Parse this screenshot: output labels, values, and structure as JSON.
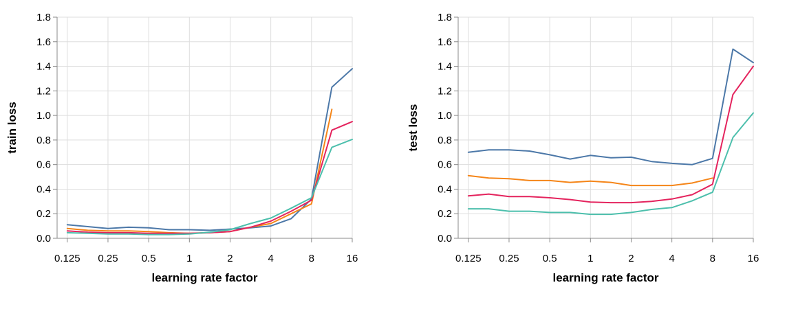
{
  "colors": {
    "grid": "#dddddd",
    "axis": "#888888",
    "background": "#ffffff"
  },
  "chart_data": [
    {
      "type": "line",
      "xlabel": "learning rate factor",
      "ylabel": "train loss",
      "x_scale": "log2",
      "ylim": [
        0,
        1.8
      ],
      "grid": true,
      "x_ticks": [
        0.125,
        0.25,
        0.5,
        1,
        2,
        4,
        8,
        16
      ],
      "x_tick_labels": [
        "0.125",
        "0.25",
        "0.5",
        "1",
        "2",
        "4",
        "8",
        "16"
      ],
      "y_ticks": [
        0,
        0.2,
        0.4,
        0.6,
        0.8,
        1.0,
        1.2,
        1.4,
        1.6,
        1.8
      ],
      "y_tick_labels": [
        "0.0",
        "0.2",
        "0.4",
        "0.6",
        "0.8",
        "1.0",
        "1.2",
        "1.4",
        "1.6",
        "1.8"
      ],
      "x": [
        0.125,
        0.177,
        0.25,
        0.354,
        0.5,
        0.707,
        1,
        1.414,
        2,
        2.828,
        4,
        5.657,
        8,
        11.31,
        16
      ],
      "series": [
        {
          "color": "#4c78a8",
          "values": [
            0.11,
            0.095,
            0.08,
            0.09,
            0.085,
            0.07,
            0.07,
            0.065,
            0.075,
            0.085,
            0.1,
            0.16,
            0.32,
            1.23,
            1.38
          ]
        },
        {
          "color": "#f58518",
          "values": [
            0.08,
            0.065,
            0.06,
            0.06,
            0.055,
            0.045,
            0.04,
            0.045,
            0.055,
            0.09,
            0.12,
            0.2,
            0.28,
            1.05,
            null
          ]
        },
        {
          "color": "#e4235d",
          "values": [
            0.06,
            0.05,
            0.045,
            0.045,
            0.04,
            0.04,
            0.04,
            0.045,
            0.055,
            0.09,
            0.14,
            0.22,
            0.31,
            0.88,
            0.95
          ]
        },
        {
          "color": "#4cbfac",
          "values": [
            0.045,
            0.04,
            0.035,
            0.035,
            0.03,
            0.03,
            0.035,
            0.05,
            0.07,
            0.12,
            0.165,
            0.245,
            0.33,
            0.74,
            0.805
          ]
        }
      ]
    },
    {
      "type": "line",
      "xlabel": "learning rate factor",
      "ylabel": "test loss",
      "x_scale": "log2",
      "ylim": [
        0,
        1.8
      ],
      "grid": true,
      "x_ticks": [
        0.125,
        0.25,
        0.5,
        1,
        2,
        4,
        8,
        16
      ],
      "x_tick_labels": [
        "0.125",
        "0.25",
        "0.5",
        "1",
        "2",
        "4",
        "8",
        "16"
      ],
      "y_ticks": [
        0,
        0.2,
        0.4,
        0.6,
        0.8,
        1.0,
        1.2,
        1.4,
        1.6,
        1.8
      ],
      "y_tick_labels": [
        "0.0",
        "0.2",
        "0.4",
        "0.6",
        "0.8",
        "1.0",
        "1.2",
        "1.4",
        "1.6",
        "1.8"
      ],
      "x": [
        0.125,
        0.177,
        0.25,
        0.354,
        0.5,
        0.707,
        1,
        1.414,
        2,
        2.828,
        4,
        5.657,
        8,
        11.31,
        16
      ],
      "series": [
        {
          "color": "#4c78a8",
          "values": [
            0.7,
            0.72,
            0.72,
            0.71,
            0.68,
            0.645,
            0.675,
            0.655,
            0.66,
            0.625,
            0.61,
            0.6,
            0.65,
            1.54,
            1.43
          ]
        },
        {
          "color": "#f58518",
          "values": [
            0.51,
            0.49,
            0.485,
            0.47,
            0.47,
            0.455,
            0.465,
            0.455,
            0.43,
            0.43,
            0.43,
            0.45,
            0.49,
            null,
            null
          ]
        },
        {
          "color": "#e4235d",
          "values": [
            0.345,
            0.36,
            0.34,
            0.34,
            0.33,
            0.315,
            0.295,
            0.29,
            0.29,
            0.3,
            0.32,
            0.355,
            0.44,
            1.17,
            1.4
          ]
        },
        {
          "color": "#4cbfac",
          "values": [
            0.24,
            0.24,
            0.22,
            0.22,
            0.21,
            0.21,
            0.195,
            0.195,
            0.21,
            0.235,
            0.25,
            0.305,
            0.375,
            0.82,
            1.02
          ]
        }
      ]
    }
  ]
}
